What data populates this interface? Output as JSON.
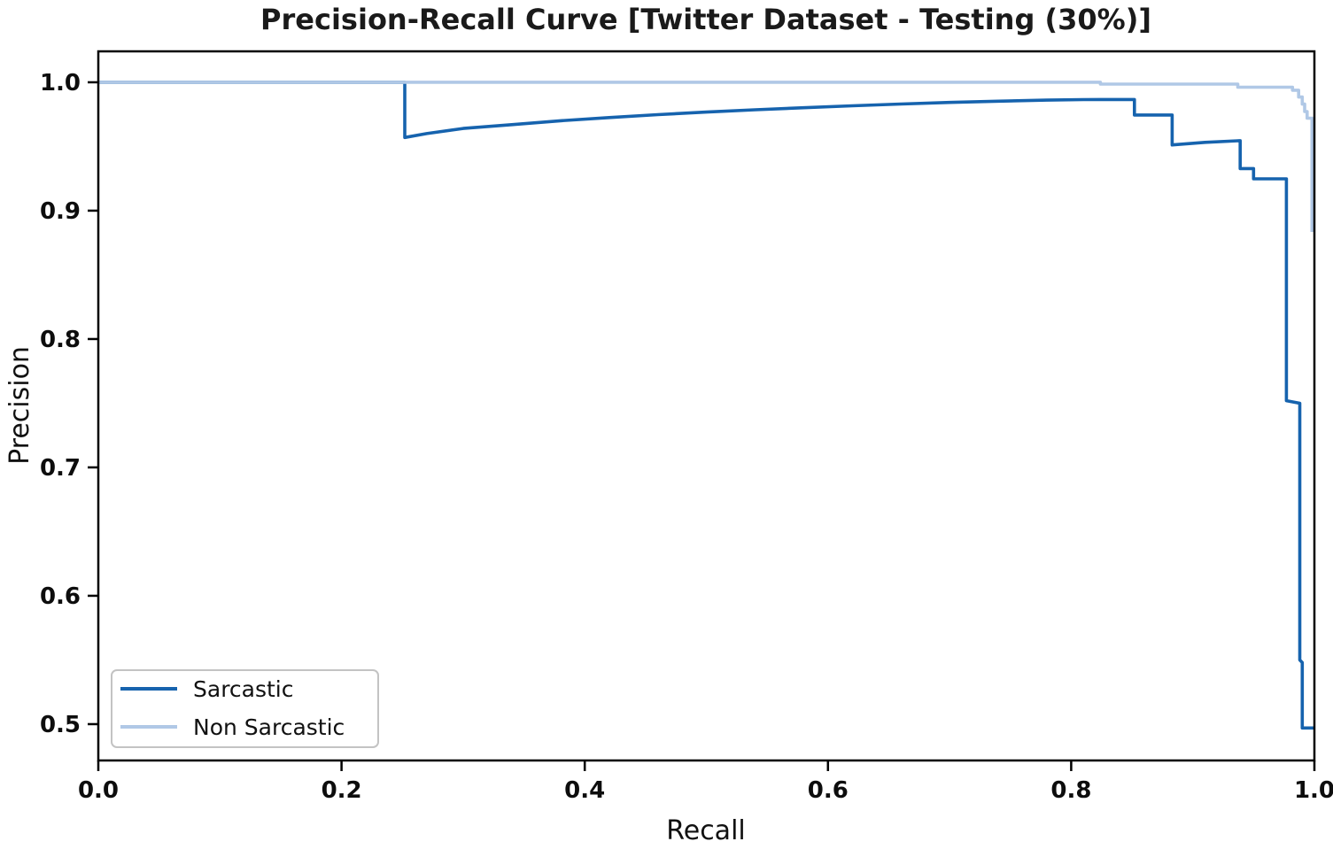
{
  "chart_data": {
    "type": "line",
    "title": "Precision-Recall Curve [Twitter Dataset - Testing (30%)]",
    "xlabel": "Recall",
    "ylabel": "Precision",
    "xlim": [
      0.0,
      1.0
    ],
    "ylim": [
      0.4717,
      1.0241
    ],
    "grid": false,
    "legend_position": "lower left",
    "x_ticks": [
      0.0,
      0.2,
      0.4,
      0.6,
      0.8,
      1.0
    ],
    "x_tick_labels": [
      "0.0",
      "0.2",
      "0.4",
      "0.6",
      "0.8",
      "1.0"
    ],
    "y_ticks": [
      1.0,
      0.9,
      0.8,
      0.7,
      0.6,
      0.5
    ],
    "y_tick_labels": [
      "1.0",
      "0.9",
      "0.8",
      "0.7",
      "0.6",
      "0.5"
    ],
    "series": [
      {
        "name": "Sarcastic",
        "color": "#1663ae",
        "points": [
          [
            0.0,
            1.0
          ],
          [
            0.252,
            1.0
          ],
          [
            0.252,
            0.957
          ],
          [
            0.27,
            0.96
          ],
          [
            0.3,
            0.964
          ],
          [
            0.34,
            0.967
          ],
          [
            0.38,
            0.97
          ],
          [
            0.42,
            0.9725
          ],
          [
            0.46,
            0.9748
          ],
          [
            0.5,
            0.9768
          ],
          [
            0.54,
            0.9786
          ],
          [
            0.58,
            0.9802
          ],
          [
            0.62,
            0.9817
          ],
          [
            0.66,
            0.9831
          ],
          [
            0.7,
            0.9843
          ],
          [
            0.74,
            0.9853
          ],
          [
            0.78,
            0.9861
          ],
          [
            0.81,
            0.9865
          ],
          [
            0.824,
            0.9866
          ],
          [
            0.852,
            0.9866
          ],
          [
            0.852,
            0.9745
          ],
          [
            0.883,
            0.9745
          ],
          [
            0.883,
            0.9512
          ],
          [
            0.91,
            0.9532
          ],
          [
            0.939,
            0.9545
          ],
          [
            0.939,
            0.9328
          ],
          [
            0.95,
            0.9328
          ],
          [
            0.95,
            0.9248
          ],
          [
            0.977,
            0.9248
          ],
          [
            0.977,
            0.752
          ],
          [
            0.988,
            0.75
          ],
          [
            0.988,
            0.55
          ],
          [
            0.99,
            0.548
          ],
          [
            0.99,
            0.497
          ],
          [
            1.0,
            0.497
          ]
        ]
      },
      {
        "name": "Non Sarcastic",
        "color": "#b0c8e6",
        "points": [
          [
            0.0,
            1.0
          ],
          [
            0.824,
            1.0
          ],
          [
            0.824,
            0.9986
          ],
          [
            0.937,
            0.9986
          ],
          [
            0.937,
            0.9962
          ],
          [
            0.982,
            0.9962
          ],
          [
            0.982,
            0.9938
          ],
          [
            0.987,
            0.9938
          ],
          [
            0.987,
            0.9885
          ],
          [
            0.99,
            0.9885
          ],
          [
            0.99,
            0.983
          ],
          [
            0.992,
            0.983
          ],
          [
            0.992,
            0.9772
          ],
          [
            0.994,
            0.9772
          ],
          [
            0.994,
            0.972
          ],
          [
            0.998,
            0.972
          ],
          [
            0.998,
            0.8834
          ]
        ]
      }
    ]
  }
}
